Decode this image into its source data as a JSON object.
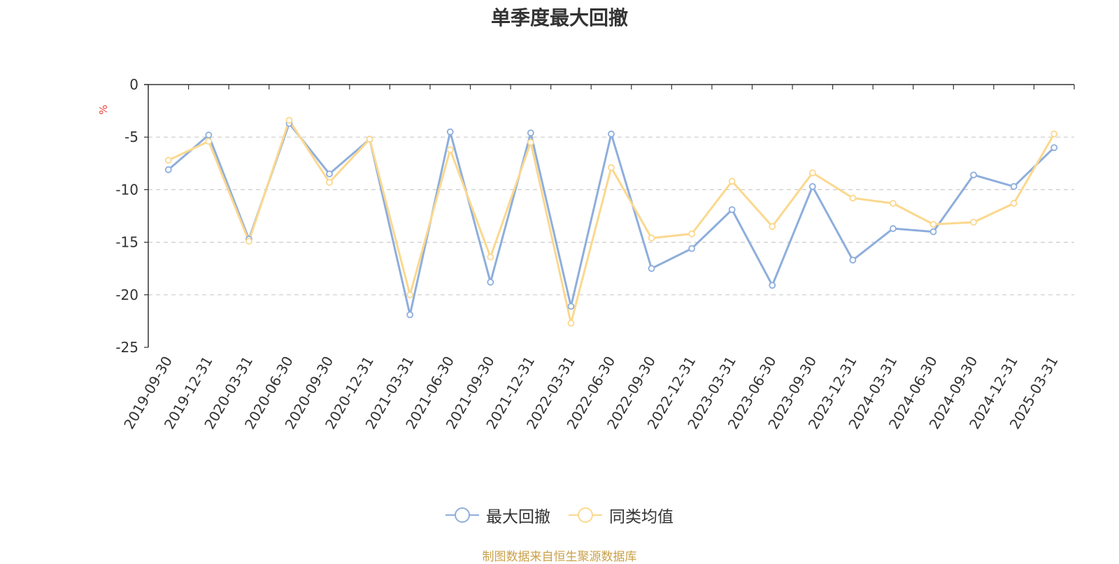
{
  "chart_data": {
    "type": "line",
    "title": "单季度最大回撤",
    "ylabel": "%",
    "ylim": [
      -25,
      0
    ],
    "yticks": [
      0,
      -5,
      -10,
      -15,
      -20,
      -25
    ],
    "grid": true,
    "legend_position": "bottom",
    "categories": [
      "2019-09-30",
      "2019-12-31",
      "2020-03-31",
      "2020-06-30",
      "2020-09-30",
      "2020-12-31",
      "2021-03-31",
      "2021-06-30",
      "2021-09-30",
      "2021-12-31",
      "2022-03-31",
      "2022-06-30",
      "2022-09-30",
      "2022-12-31",
      "2023-03-31",
      "2023-06-30",
      "2023-09-30",
      "2023-12-31",
      "2024-03-31",
      "2024-06-30",
      "2024-09-30",
      "2024-12-31",
      "2025-03-31"
    ],
    "series": [
      {
        "name": "最大回撤",
        "color": "#8eaedc",
        "values": [
          -8.1,
          -4.8,
          -14.7,
          -3.7,
          -8.5,
          -5.2,
          -21.9,
          -4.5,
          -18.8,
          -4.6,
          -21.1,
          -4.7,
          -17.5,
          -15.6,
          -11.9,
          -19.1,
          -9.7,
          -16.7,
          -13.7,
          -14.0,
          -8.6,
          -9.7,
          -6.0
        ]
      },
      {
        "name": "同类均值",
        "color": "#fbd88e",
        "values": [
          -7.2,
          -5.4,
          -14.9,
          -3.4,
          -9.3,
          -5.2,
          -20.0,
          -6.2,
          -16.4,
          -5.5,
          -22.7,
          -7.9,
          -14.6,
          -14.2,
          -9.2,
          -13.5,
          -8.4,
          -10.8,
          -11.3,
          -13.3,
          -13.1,
          -11.3,
          -4.7
        ]
      }
    ]
  },
  "source_note": "制图数据来自恒生聚源数据库"
}
